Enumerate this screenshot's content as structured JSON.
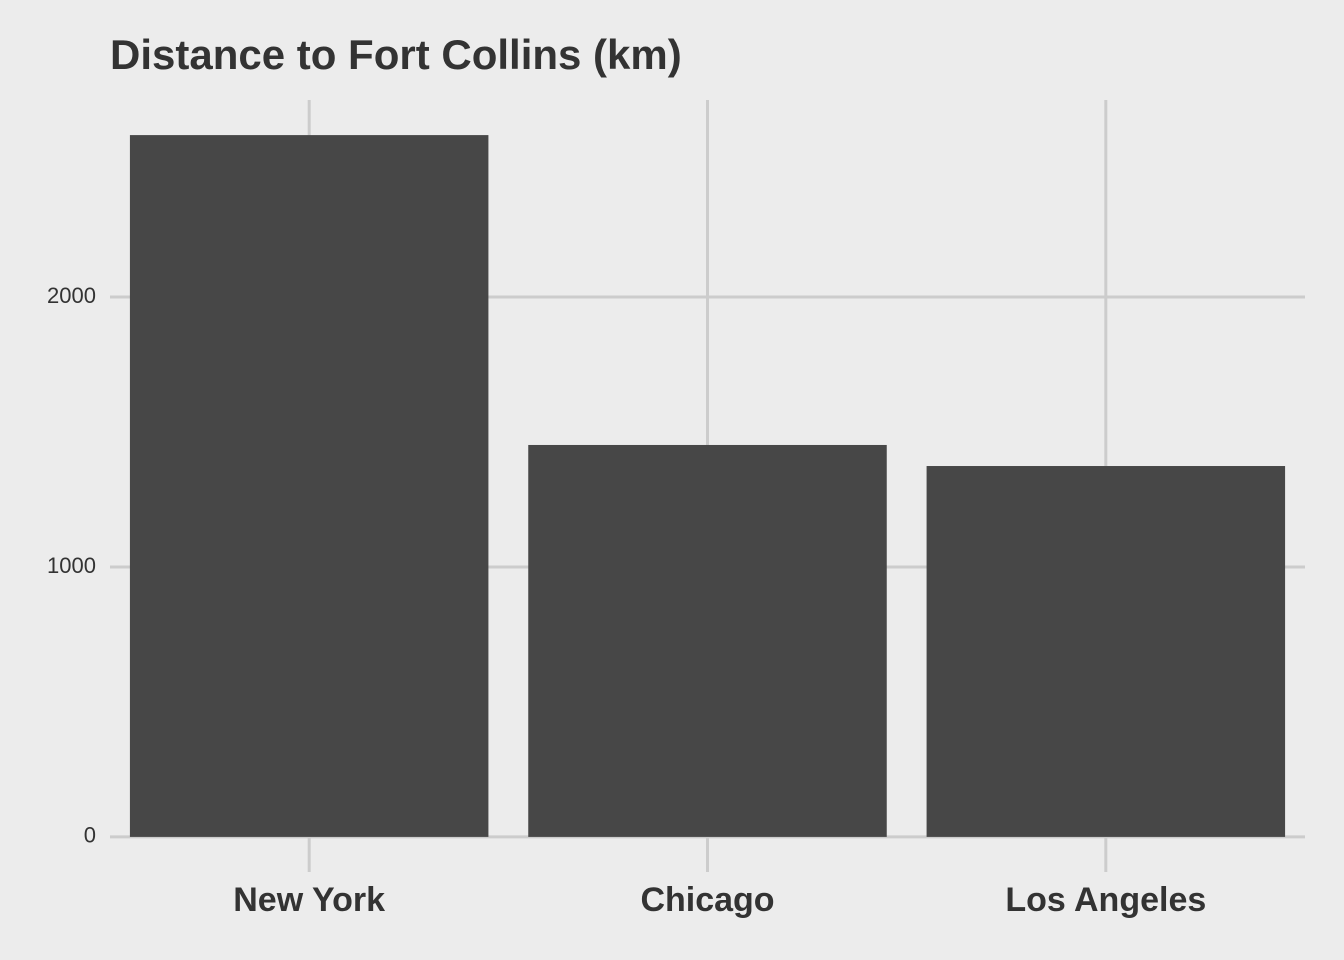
{
  "chart_data": {
    "type": "bar",
    "title": "Distance to Fort Collins (km)",
    "categories": [
      "New York",
      "Chicago",
      "Los Angeles"
    ],
    "values": [
      2600,
      1452,
      1374
    ],
    "color": "#474747",
    "ylim": [
      -130,
      2730
    ],
    "yticks": [
      0,
      1000,
      2000
    ],
    "grid": true
  }
}
